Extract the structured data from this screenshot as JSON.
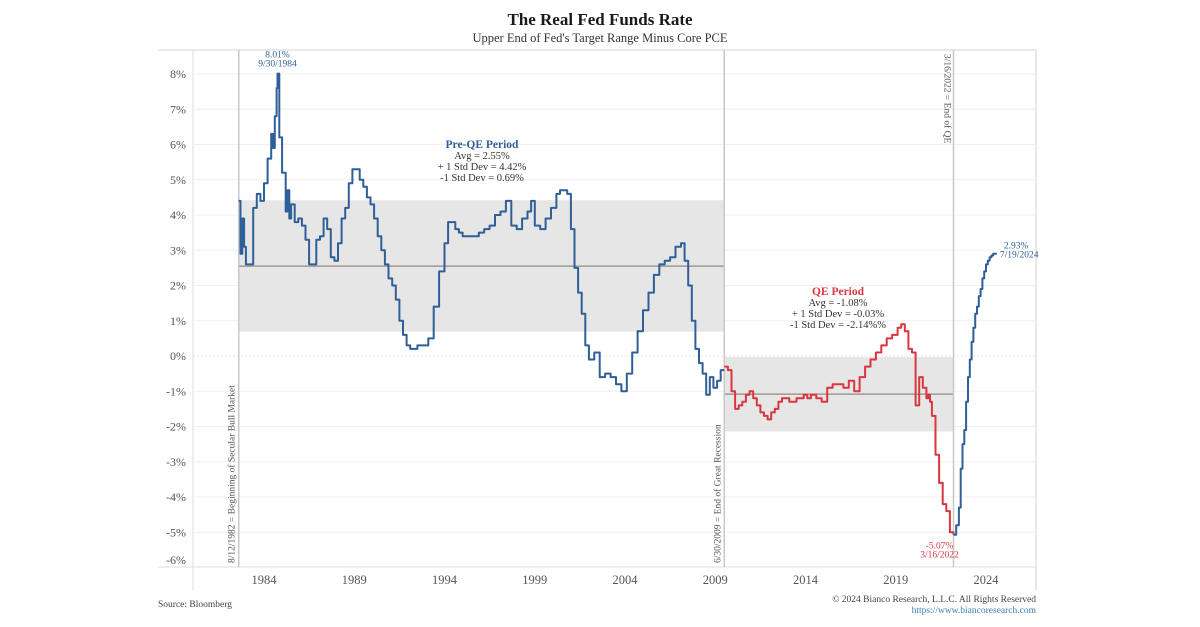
{
  "chart_data": {
    "type": "line",
    "title": "The Real Fed Funds Rate",
    "subtitle": "Upper End of Fed's Target Range Minus Core PCE",
    "xlabel": "",
    "ylabel": "",
    "xlim": [
      1979.3,
      2027.8
    ],
    "ylim": [
      -6.2,
      8.5
    ],
    "grid": true,
    "y_ticks": [
      8,
      7,
      6,
      5,
      4,
      3,
      2,
      1,
      0,
      -1,
      -2,
      -3,
      -4,
      -5,
      -6
    ],
    "y_tick_labels": [
      "8%",
      "7%",
      "6%",
      "5%",
      "4%",
      "3%",
      "2%",
      "1%",
      "0%",
      "-1%",
      "-2%",
      "-3%",
      "-4%",
      "-5%",
      "-6%"
    ],
    "x_ticks": [
      1984,
      1989,
      1994,
      1999,
      2004,
      2009,
      2014,
      2019,
      2024
    ],
    "x_tick_labels": [
      "1984",
      "1989",
      "1994",
      "1999",
      "2004",
      "2009",
      "2014",
      "2019",
      "2024"
    ],
    "colors": {
      "pre_qe": "#2f5f98",
      "qe": "#d9373f",
      "post_qe": "#2f5f98",
      "band": "#e6e6e6",
      "avg_line": "#a09890",
      "vline": "#c8c8c8",
      "grid": "#f0f0f0"
    },
    "periods": [
      {
        "name": "Pre-QE Period",
        "start": 1982.6,
        "end": 2009.5,
        "avg": 2.55,
        "plus_1sd": 4.42,
        "minus_1sd": 0.69,
        "label_lines": [
          "Pre-QE Period",
          "Avg = 2.55%",
          "+ 1 Std Dev = 4.42%",
          "-1 Std Dev = 0.69%"
        ]
      },
      {
        "name": "QE Period",
        "start": 2009.5,
        "end": 2022.2,
        "avg": -1.08,
        "plus_1sd": -0.03,
        "minus_1sd": -2.14,
        "label_lines": [
          "QE Period",
          "Avg = -1.08%",
          "+ 1 Std Dev = -0.03%",
          "-1 Std Dev = -2.14%%"
        ]
      }
    ],
    "vertical_markers": [
      {
        "x": 1982.6,
        "label": "8/12/1982 = Beginning of Secular Bull Market"
      },
      {
        "x": 2009.5,
        "label": "6/30/2009 = End of Great Recession"
      },
      {
        "x": 2022.2,
        "label": "3/16/2022 = End of QE"
      }
    ],
    "point_annotations": [
      {
        "x": 1984.75,
        "y": 8.01,
        "lines": [
          "8.01%",
          "9/30/1984"
        ],
        "series": "pre_qe"
      },
      {
        "x": 2022.2,
        "y": -5.07,
        "lines": [
          "-5.07%",
          "3/16/2022"
        ],
        "series": "qe"
      },
      {
        "x": 2024.55,
        "y": 2.93,
        "lines": [
          "2.93%",
          "7/19/2024"
        ],
        "series": "post_qe"
      }
    ],
    "series": [
      {
        "name": "pre_qe",
        "x": [
          1982.6,
          1982.7,
          1982.8,
          1982.9,
          1983.0,
          1983.1,
          1983.2,
          1983.4,
          1983.6,
          1983.8,
          1984.0,
          1984.2,
          1984.4,
          1984.5,
          1984.6,
          1984.7,
          1984.75,
          1984.85,
          1985.0,
          1985.2,
          1985.3,
          1985.4,
          1985.5,
          1985.7,
          1985.9,
          1986.1,
          1986.3,
          1986.5,
          1986.7,
          1986.9,
          1987.1,
          1987.3,
          1987.5,
          1987.7,
          1987.9,
          1988.1,
          1988.3,
          1988.5,
          1988.7,
          1988.9,
          1989.1,
          1989.3,
          1989.5,
          1989.7,
          1989.9,
          1990.1,
          1990.3,
          1990.5,
          1990.7,
          1990.9,
          1991.1,
          1991.3,
          1991.5,
          1991.7,
          1991.9,
          1992.1,
          1992.3,
          1992.5,
          1992.8,
          1993.1,
          1993.4,
          1993.7,
          1994.0,
          1994.2,
          1994.4,
          1994.6,
          1994.8,
          1995.0,
          1995.3,
          1995.6,
          1995.9,
          1996.2,
          1996.5,
          1996.8,
          1997.1,
          1997.4,
          1997.7,
          1998.0,
          1998.3,
          1998.6,
          1998.8,
          1999.0,
          1999.3,
          1999.6,
          1999.9,
          2000.2,
          2000.4,
          2000.6,
          2000.8,
          2001.0,
          2001.2,
          2001.4,
          2001.6,
          2001.8,
          2002.0,
          2002.3,
          2002.6,
          2002.9,
          2003.2,
          2003.5,
          2003.8,
          2004.1,
          2004.4,
          2004.7,
          2005.0,
          2005.3,
          2005.6,
          2005.9,
          2006.2,
          2006.5,
          2006.8,
          2007.1,
          2007.3,
          2007.5,
          2007.7,
          2007.9,
          2008.1,
          2008.3,
          2008.5,
          2008.7,
          2008.9,
          2009.1,
          2009.3,
          2009.5
        ],
        "y": [
          4.4,
          2.9,
          3.9,
          3.1,
          2.6,
          2.6,
          2.6,
          4.2,
          4.6,
          4.4,
          4.9,
          5.6,
          6.3,
          5.9,
          6.8,
          7.6,
          8.01,
          6.2,
          5.2,
          4.1,
          4.7,
          3.9,
          4.3,
          3.8,
          3.9,
          3.7,
          3.3,
          2.6,
          2.6,
          3.3,
          3.4,
          3.9,
          3.6,
          2.8,
          2.7,
          3.2,
          3.9,
          4.2,
          4.9,
          5.3,
          5.3,
          5.0,
          4.8,
          4.5,
          4.3,
          3.9,
          3.4,
          3.0,
          2.6,
          2.2,
          2.0,
          1.6,
          1.0,
          0.6,
          0.3,
          0.2,
          0.2,
          0.3,
          0.3,
          0.5,
          1.4,
          2.4,
          3.2,
          3.8,
          3.8,
          3.6,
          3.5,
          3.4,
          3.4,
          3.4,
          3.5,
          3.6,
          3.7,
          4.0,
          4.1,
          4.4,
          3.7,
          3.6,
          3.9,
          4.1,
          4.4,
          3.7,
          3.6,
          3.9,
          4.2,
          4.6,
          4.7,
          4.7,
          4.6,
          3.6,
          2.5,
          1.8,
          1.2,
          0.3,
          -0.1,
          0.1,
          -0.6,
          -0.5,
          -0.6,
          -0.8,
          -1.0,
          -0.5,
          0.1,
          0.7,
          1.3,
          1.8,
          2.3,
          2.6,
          2.7,
          2.8,
          3.1,
          3.2,
          2.7,
          2.0,
          1.0,
          0.2,
          -0.2,
          -0.5,
          -1.1,
          -0.6,
          -0.9,
          -0.7,
          -0.4,
          -0.4
        ]
      },
      {
        "name": "qe",
        "x": [
          2009.5,
          2009.7,
          2009.9,
          2010.1,
          2010.3,
          2010.5,
          2010.7,
          2010.9,
          2011.1,
          2011.3,
          2011.5,
          2011.7,
          2011.9,
          2012.1,
          2012.3,
          2012.5,
          2012.7,
          2012.9,
          2013.1,
          2013.3,
          2013.5,
          2013.7,
          2013.9,
          2014.1,
          2014.3,
          2014.6,
          2014.9,
          2015.2,
          2015.5,
          2015.8,
          2016.1,
          2016.4,
          2016.7,
          2017.0,
          2017.3,
          2017.6,
          2017.9,
          2018.2,
          2018.5,
          2018.8,
          2019.1,
          2019.3,
          2019.5,
          2019.7,
          2019.9,
          2020.1,
          2020.3,
          2020.5,
          2020.7,
          2020.8,
          2020.9,
          2021.0,
          2021.2,
          2021.4,
          2021.6,
          2021.8,
          2022.0,
          2022.2
        ],
        "y": [
          -0.3,
          -0.4,
          -1.0,
          -1.5,
          -1.4,
          -1.3,
          -1.1,
          -1.0,
          -1.2,
          -1.4,
          -1.6,
          -1.7,
          -1.8,
          -1.6,
          -1.5,
          -1.3,
          -1.2,
          -1.2,
          -1.3,
          -1.3,
          -1.2,
          -1.2,
          -1.1,
          -1.2,
          -1.1,
          -1.2,
          -1.3,
          -0.9,
          -0.8,
          -0.8,
          -0.9,
          -0.7,
          -1.0,
          -0.6,
          -0.3,
          -0.1,
          0.1,
          0.3,
          0.5,
          0.6,
          0.8,
          0.9,
          0.7,
          0.2,
          0.1,
          -1.4,
          -0.6,
          -0.9,
          -1.2,
          -1.1,
          -1.3,
          -1.7,
          -2.8,
          -3.6,
          -4.2,
          -4.4,
          -5.0,
          -5.07
        ]
      },
      {
        "name": "post_qe",
        "x": [
          2022.2,
          2022.35,
          2022.5,
          2022.6,
          2022.7,
          2022.8,
          2022.9,
          2023.0,
          2023.1,
          2023.2,
          2023.3,
          2023.4,
          2023.5,
          2023.6,
          2023.7,
          2023.8,
          2023.9,
          2024.0,
          2024.1,
          2024.2,
          2024.3,
          2024.4,
          2024.55
        ],
        "y": [
          -5.07,
          -4.8,
          -4.3,
          -3.2,
          -2.5,
          -2.1,
          -1.3,
          -0.6,
          -0.1,
          0.4,
          0.8,
          1.2,
          1.4,
          1.7,
          1.9,
          2.2,
          2.4,
          2.6,
          2.7,
          2.8,
          2.85,
          2.9,
          2.93
        ]
      }
    ]
  },
  "footer": {
    "source": "Source: Bloomberg",
    "copyright": "© 2024 Bianco Research, L.L.C. All Rights Reserved",
    "url": "https://www.biancoresearch.com"
  }
}
